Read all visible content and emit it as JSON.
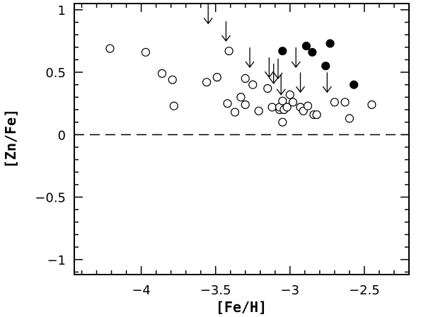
{
  "chart_data": {
    "type": "scatter",
    "xlabel": "[Fe/H]",
    "ylabel": "[Zn/Fe]",
    "xlim": [
      -4.45,
      -2.2
    ],
    "ylim": [
      -1.12,
      1.05
    ],
    "x_reversed": false,
    "x_ticks": [
      -4,
      -3.5,
      -3,
      -2.5
    ],
    "x_tick_labels": [
      "−4",
      "−3.5",
      "−3",
      "−2.5"
    ],
    "y_ticks": [
      1,
      0.5,
      0,
      -0.5,
      -1
    ],
    "y_tick_labels": [
      "1",
      "0.5",
      "0",
      "−0.5",
      "−1"
    ],
    "reference_line": {
      "y": 0,
      "style": "dashed"
    },
    "grid": false,
    "legend": "none",
    "series": [
      {
        "marker": "open-circle",
        "points": [
          [
            -4.21,
            0.69
          ],
          [
            -3.97,
            0.66
          ],
          [
            -3.86,
            0.49
          ],
          [
            -3.79,
            0.44
          ],
          [
            -3.78,
            0.23
          ],
          [
            -3.56,
            0.42
          ],
          [
            -3.49,
            0.46
          ],
          [
            -3.41,
            0.67
          ],
          [
            -3.42,
            0.25
          ],
          [
            -3.37,
            0.18
          ],
          [
            -3.33,
            0.3
          ],
          [
            -3.3,
            0.45
          ],
          [
            -3.3,
            0.24
          ],
          [
            -3.25,
            0.4
          ],
          [
            -3.21,
            0.19
          ],
          [
            -3.15,
            0.37
          ],
          [
            -3.12,
            0.22
          ],
          [
            -3.07,
            0.2
          ],
          [
            -3.07,
            0.22
          ],
          [
            -3.05,
            0.27
          ],
          [
            -3.05,
            0.1
          ],
          [
            -3.04,
            0.2
          ],
          [
            -3.02,
            0.22
          ],
          [
            -3.0,
            0.32
          ],
          [
            -2.98,
            0.26
          ],
          [
            -2.93,
            0.22
          ],
          [
            -2.91,
            0.19
          ],
          [
            -2.88,
            0.23
          ],
          [
            -2.84,
            0.16
          ],
          [
            -2.82,
            0.16
          ],
          [
            -2.7,
            0.26
          ],
          [
            -2.63,
            0.26
          ],
          [
            -2.6,
            0.13
          ],
          [
            -2.45,
            0.24
          ]
        ]
      },
      {
        "marker": "filled-circle",
        "points": [
          [
            -3.05,
            0.67
          ],
          [
            -2.89,
            0.71
          ],
          [
            -2.85,
            0.66
          ],
          [
            -2.73,
            0.73
          ],
          [
            -2.76,
            0.55
          ],
          [
            -2.57,
            0.4
          ]
        ]
      },
      {
        "marker": "upper-limit-arrow",
        "points": [
          [
            -3.55,
            0.89
          ],
          [
            -3.43,
            0.75
          ],
          [
            -3.27,
            0.54
          ],
          [
            -3.14,
            0.46
          ],
          [
            -3.11,
            0.41
          ],
          [
            -3.08,
            0.45
          ],
          [
            -3.06,
            0.32
          ],
          [
            -2.96,
            0.54
          ],
          [
            -2.93,
            0.34
          ],
          [
            -2.75,
            0.34
          ]
        ]
      }
    ]
  }
}
